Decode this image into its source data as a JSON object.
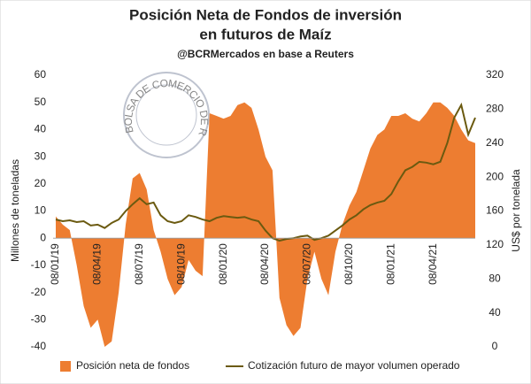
{
  "watermark": "BOLSA DE COMERCIO DE ROSARIO",
  "chart_data": {
    "type": "area-line",
    "title": [
      "Posición Neta de Fondos de inversión",
      "en futuros de Maíz"
    ],
    "subtitle": "@BCRMercados  en base a Reuters",
    "y_label": "Millones de toneladas",
    "y2_label": "US$ por tonelada",
    "categories": [
      "08/01/19",
      null,
      null,
      null,
      null,
      null,
      "08/04/19",
      null,
      null,
      null,
      null,
      null,
      "08/07/19",
      null,
      null,
      null,
      null,
      null,
      "08/10/19",
      null,
      null,
      null,
      null,
      null,
      "08/01/20",
      null,
      null,
      null,
      null,
      null,
      "08/04/20",
      null,
      null,
      null,
      null,
      null,
      "08/07/20",
      null,
      null,
      null,
      null,
      null,
      "08/10/20",
      null,
      null,
      null,
      null,
      null,
      "08/01/21",
      null,
      null,
      null,
      null,
      null,
      "08/04/21",
      null,
      null,
      null,
      null,
      null,
      null
    ],
    "series": [
      {
        "name": "Posición neta de fondos",
        "color": "#ed7d31",
        "kind": "area",
        "axis": "y",
        "values": [
          8,
          5,
          3,
          -10,
          -25,
          -33,
          -30,
          -40,
          -38,
          -20,
          5,
          22,
          24,
          18,
          3,
          -5,
          -15,
          -21,
          -18,
          -8,
          -12,
          -14,
          46,
          45,
          44,
          45,
          49,
          50,
          48,
          40,
          30,
          25,
          -22,
          -32,
          -36,
          -33,
          -15,
          -5,
          -15,
          -21,
          -5,
          5,
          12,
          17,
          25,
          33,
          38,
          40,
          45,
          45,
          46,
          44,
          43,
          46,
          50,
          50,
          48,
          45,
          40,
          36,
          35
        ]
      },
      {
        "name": "Cotización futuro de mayor volumen operado",
        "color": "#6b5a10",
        "kind": "line",
        "axis": "y2",
        "values": [
          150,
          148,
          149,
          147,
          148,
          143,
          144,
          140,
          146,
          150,
          160,
          168,
          175,
          168,
          170,
          155,
          148,
          146,
          148,
          155,
          153,
          150,
          148,
          152,
          154,
          153,
          152,
          153,
          150,
          148,
          137,
          128,
          125,
          127,
          128,
          130,
          131,
          126,
          128,
          131,
          137,
          143,
          150,
          155,
          162,
          167,
          170,
          172,
          180,
          195,
          208,
          212,
          218,
          217,
          215,
          218,
          240,
          270,
          285,
          250,
          270
        ]
      }
    ],
    "ylim": [
      -40,
      60
    ],
    "yticks": [
      -40,
      -30,
      -20,
      -10,
      0,
      10,
      20,
      30,
      40,
      50,
      60
    ],
    "y2lim": [
      0,
      320
    ],
    "y2ticks": [
      0,
      40,
      80,
      120,
      160,
      200,
      240,
      280,
      320
    ],
    "legend": "bottom"
  }
}
